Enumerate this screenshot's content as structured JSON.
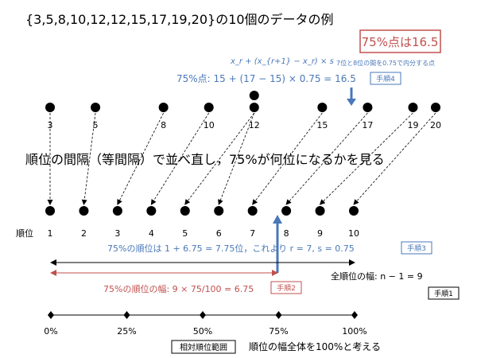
{
  "header": {
    "title": "{3,5,8,10,12,12,15,17,19,20}の10個のデータの例",
    "result_box": "75%点は16.5"
  },
  "formula": {
    "general": "x_r + (x_{r+1} − x_r) × s",
    "note": "7位と8位の間を0.75で内分する点",
    "calc": "75%点: 15 + (17 − 15) × 0.75 = 16.5",
    "step": "手順4"
  },
  "data_values": [
    "3",
    "5",
    "8",
    "10",
    "12",
    "12",
    "15",
    "17",
    "19",
    "20"
  ],
  "value_axis_labels": [
    "3",
    "5",
    "8",
    "10",
    "12",
    "15",
    "17",
    "19",
    "20"
  ],
  "middle_caption": "順位の間隔（等間隔）で並べ直し，75%が何位になるかを見る",
  "rank_label": "順位",
  "ranks": [
    "1",
    "2",
    "3",
    "4",
    "5",
    "6",
    "7",
    "8",
    "9",
    "10"
  ],
  "rank_calc": {
    "text": "75%の順位は 1 + 6.75 = 7.75位，これより r = 7, s = 0.75",
    "step": "手順3"
  },
  "total_width": {
    "text": "全順位の幅: n − 1 = 9",
    "step": "手順1"
  },
  "width75": {
    "text": "75%の順位の幅: 9 × 75/100 = 6.75",
    "step": "手順2"
  },
  "percent_labels": [
    "0%",
    "25%",
    "50%",
    "75%",
    "100%"
  ],
  "bottom": {
    "box_label": "相対順位範囲",
    "caption": "順位の幅全体を100%と考える"
  },
  "colors": {
    "blue": "#4a78b8",
    "red": "#c0504d",
    "black": "#000000"
  }
}
